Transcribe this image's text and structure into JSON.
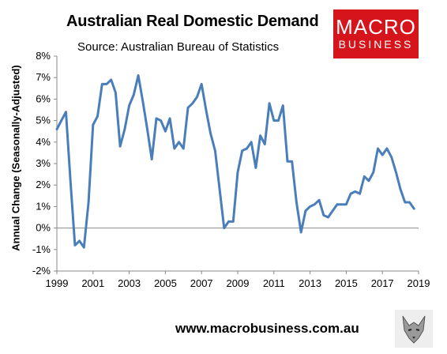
{
  "header": {
    "title": "Australian Real Domestic Demand",
    "subtitle": "Source: Australian Bureau of Statistics"
  },
  "logo": {
    "line1": "MACRO",
    "line2": "BUSINESS",
    "color": "#d6141c"
  },
  "footer": {
    "website": "www.macrobusiness.com.au",
    "icon": "wolf-logo-icon"
  },
  "chart_data": {
    "type": "line",
    "title": "Australian Real Domestic Demand",
    "subtitle": "Source: Australian Bureau of Statistics",
    "xlabel": "",
    "ylabel": "Annual Change (Seasonally-Adjusted)",
    "xlim": [
      1999,
      2019
    ],
    "ylim": [
      -2,
      8
    ],
    "x_ticks": [
      "1999",
      "2001",
      "2003",
      "2005",
      "2007",
      "2009",
      "2011",
      "2013",
      "2015",
      "2017",
      "2019"
    ],
    "y_ticks": [
      "-2%",
      "-1%",
      "0%",
      "1%",
      "2%",
      "3%",
      "4%",
      "5%",
      "6%",
      "7%",
      "8%"
    ],
    "grid": false,
    "legend": "none",
    "line_color": "#4a7ebb",
    "series": [
      {
        "x": [
          1999.0,
          1999.25,
          1999.5,
          1999.75,
          2000.0,
          2000.25,
          2000.5,
          2000.75,
          2001.0,
          2001.25,
          2001.5,
          2001.75,
          2002.0,
          2002.25,
          2002.5,
          2002.75,
          2003.0,
          2003.25,
          2003.5,
          2003.75,
          2004.0,
          2004.25,
          2004.5,
          2004.75,
          2005.0,
          2005.25,
          2005.5,
          2005.75,
          2006.0,
          2006.25,
          2006.5,
          2006.75,
          2007.0,
          2007.25,
          2007.5,
          2007.75,
          2008.0,
          2008.25,
          2008.5,
          2008.75,
          2009.0,
          2009.25,
          2009.5,
          2009.75,
          2010.0,
          2010.25,
          2010.5,
          2010.75,
          2011.0,
          2011.25,
          2011.5,
          2011.75,
          2012.0,
          2012.25,
          2012.5,
          2012.75,
          2013.0,
          2013.25,
          2013.5,
          2013.75,
          2014.0,
          2014.25,
          2014.5,
          2014.75,
          2015.0,
          2015.25,
          2015.5,
          2015.75,
          2016.0,
          2016.25,
          2016.5,
          2016.75,
          2017.0,
          2017.25,
          2017.5,
          2017.75,
          2018.0,
          2018.25,
          2018.5,
          2018.75
        ],
        "values": [
          4.6,
          5.0,
          5.4,
          2.2,
          -0.8,
          -0.6,
          -0.9,
          1.2,
          4.8,
          5.2,
          6.7,
          6.7,
          6.9,
          6.3,
          3.8,
          4.6,
          5.7,
          6.2,
          7.1,
          5.9,
          4.6,
          3.2,
          5.1,
          5.0,
          4.5,
          5.1,
          3.7,
          4.0,
          3.7,
          5.6,
          5.8,
          6.1,
          6.7,
          5.5,
          4.4,
          3.6,
          1.8,
          0.0,
          0.3,
          0.3,
          2.6,
          3.6,
          3.7,
          4.0,
          2.8,
          4.3,
          3.9,
          5.8,
          5.0,
          5.0,
          5.7,
          3.1,
          3.1,
          1.2,
          -0.2,
          0.8,
          1.0,
          1.1,
          1.3,
          0.6,
          0.5,
          0.8,
          1.1,
          1.1,
          1.1,
          1.6,
          1.7,
          1.6,
          2.4,
          2.2,
          2.6,
          3.7,
          3.4,
          3.7,
          3.3,
          2.6,
          1.8,
          1.2,
          1.2,
          0.9
        ]
      }
    ]
  }
}
